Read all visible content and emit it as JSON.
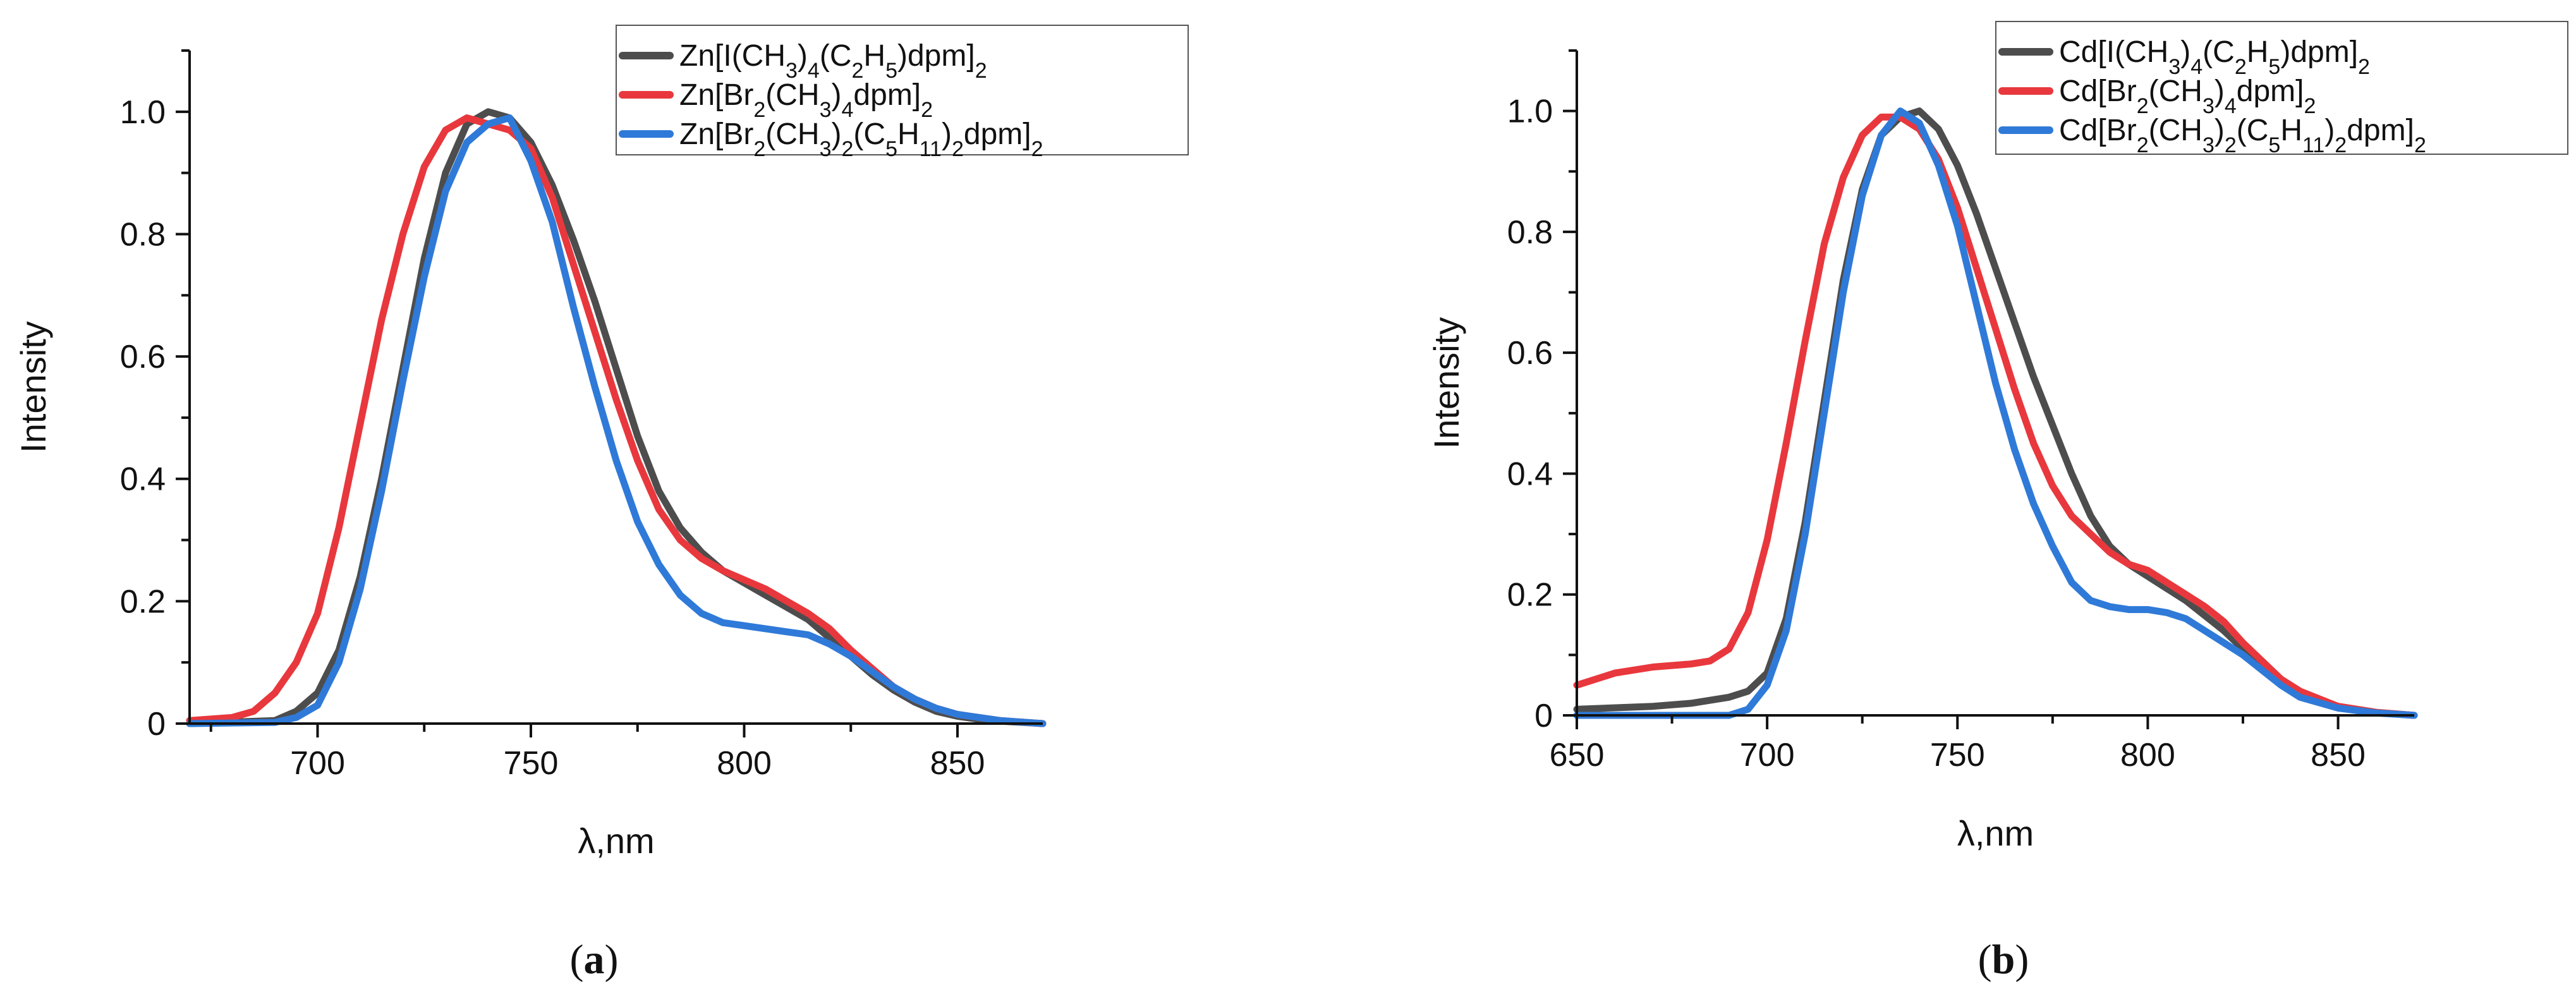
{
  "chart_data": [
    {
      "type": "line",
      "panel": "(a)",
      "panel_letter": "a",
      "xlabel": "λ,nm",
      "ylabel": "Intensity",
      "xlim": [
        670,
        870
      ],
      "ylim": [
        0,
        1.1
      ],
      "xticks": [
        700,
        750,
        800,
        850
      ],
      "yticks": [
        0,
        0.2,
        0.4,
        0.6,
        0.8,
        1.0
      ],
      "ytick_labels": [
        "0",
        "0.2",
        "0.4",
        "0.6",
        "0.8",
        "1.0"
      ],
      "legend_position": "top-right",
      "series": [
        {
          "name": "Zn[I(CH3)4(C2H5)dpm]2",
          "legend_label": "Zn[I(CH₃)₄(C₂H₅)dpm]₂",
          "color": "#4d4d4d",
          "x": [
            670,
            690,
            695,
            700,
            705,
            710,
            715,
            720,
            725,
            730,
            735,
            740,
            745,
            750,
            755,
            760,
            765,
            770,
            775,
            780,
            785,
            790,
            795,
            800,
            805,
            810,
            815,
            820,
            825,
            830,
            835,
            840,
            845,
            850,
            855,
            860,
            870
          ],
          "y": [
            0.0,
            0.005,
            0.02,
            0.05,
            0.12,
            0.24,
            0.4,
            0.58,
            0.76,
            0.9,
            0.98,
            1.0,
            0.99,
            0.95,
            0.88,
            0.79,
            0.69,
            0.58,
            0.47,
            0.38,
            0.32,
            0.28,
            0.25,
            0.23,
            0.21,
            0.19,
            0.17,
            0.14,
            0.11,
            0.08,
            0.055,
            0.035,
            0.02,
            0.012,
            0.007,
            0.004,
            0.0
          ]
        },
        {
          "name": "Zn[Br2(CH3)4dpm]2",
          "legend_label": "Zn[Br₂(CH₃)₄dpm]₂",
          "color": "#e8383d",
          "x": [
            670,
            680,
            685,
            690,
            695,
            700,
            705,
            710,
            715,
            720,
            725,
            730,
            735,
            740,
            745,
            750,
            755,
            760,
            765,
            770,
            775,
            780,
            785,
            790,
            795,
            800,
            805,
            810,
            815,
            820,
            825,
            830,
            835,
            840,
            845,
            850,
            860,
            870
          ],
          "y": [
            0.005,
            0.01,
            0.02,
            0.05,
            0.1,
            0.18,
            0.32,
            0.49,
            0.66,
            0.8,
            0.91,
            0.97,
            0.99,
            0.98,
            0.97,
            0.94,
            0.86,
            0.75,
            0.64,
            0.53,
            0.43,
            0.35,
            0.3,
            0.27,
            0.25,
            0.235,
            0.22,
            0.2,
            0.18,
            0.155,
            0.12,
            0.09,
            0.06,
            0.04,
            0.025,
            0.015,
            0.005,
            0.0
          ]
        },
        {
          "name": "Zn[Br2(CH3)2(C5H11)2dpm]2",
          "legend_label": "Zn[Br₂(CH₃)₂(C₅H₁₁)₂dpm]₂",
          "color": "#2f7ad8",
          "x": [
            670,
            690,
            695,
            700,
            705,
            710,
            715,
            720,
            725,
            730,
            735,
            740,
            745,
            750,
            755,
            760,
            765,
            770,
            775,
            780,
            785,
            790,
            795,
            800,
            805,
            810,
            815,
            820,
            825,
            830,
            835,
            840,
            845,
            850,
            860,
            870
          ],
          "y": [
            0.0,
            0.002,
            0.01,
            0.03,
            0.1,
            0.22,
            0.38,
            0.56,
            0.73,
            0.87,
            0.95,
            0.98,
            0.99,
            0.92,
            0.82,
            0.68,
            0.55,
            0.43,
            0.33,
            0.26,
            0.21,
            0.18,
            0.165,
            0.16,
            0.155,
            0.15,
            0.145,
            0.13,
            0.11,
            0.085,
            0.06,
            0.04,
            0.025,
            0.015,
            0.005,
            0.0
          ]
        }
      ]
    },
    {
      "type": "line",
      "panel": "(b)",
      "panel_letter": "b",
      "xlabel": "λ,nm",
      "ylabel": "Intensity",
      "xlim": [
        650,
        870
      ],
      "ylim": [
        0,
        1.1
      ],
      "xticks": [
        650,
        700,
        750,
        800,
        850
      ],
      "yticks": [
        0,
        0.2,
        0.4,
        0.6,
        0.8,
        1.0
      ],
      "ytick_labels": [
        "0",
        "0.2",
        "0.4",
        "0.6",
        "0.8",
        "1.0"
      ],
      "legend_position": "top-right",
      "series": [
        {
          "name": "Cd[I(CH3)4(C2H5)dpm]2",
          "legend_label": "Cd[I(CH₃)₄(C₂H₅)dpm]₂",
          "color": "#4d4d4d",
          "x": [
            650,
            670,
            680,
            690,
            695,
            700,
            705,
            710,
            715,
            720,
            725,
            730,
            735,
            740,
            745,
            750,
            755,
            760,
            765,
            770,
            775,
            780,
            785,
            790,
            795,
            800,
            805,
            810,
            815,
            820,
            825,
            830,
            835,
            840,
            850,
            860,
            870
          ],
          "y": [
            0.01,
            0.015,
            0.02,
            0.03,
            0.04,
            0.07,
            0.16,
            0.32,
            0.52,
            0.72,
            0.87,
            0.96,
            0.99,
            1.0,
            0.97,
            0.91,
            0.83,
            0.74,
            0.65,
            0.56,
            0.48,
            0.4,
            0.33,
            0.28,
            0.25,
            0.23,
            0.21,
            0.19,
            0.165,
            0.14,
            0.11,
            0.08,
            0.055,
            0.035,
            0.015,
            0.005,
            0.0
          ]
        },
        {
          "name": "Cd[Br2(CH3)4dpm]2",
          "legend_label": "Cd[Br₂(CH₃)₄dpm]₂",
          "color": "#e8383d",
          "x": [
            650,
            660,
            670,
            680,
            685,
            690,
            695,
            700,
            705,
            710,
            715,
            720,
            725,
            730,
            735,
            740,
            745,
            750,
            755,
            760,
            765,
            770,
            775,
            780,
            785,
            790,
            795,
            800,
            805,
            810,
            815,
            820,
            825,
            830,
            835,
            840,
            850,
            860,
            870
          ],
          "y": [
            0.05,
            0.07,
            0.08,
            0.085,
            0.09,
            0.11,
            0.17,
            0.29,
            0.45,
            0.62,
            0.78,
            0.89,
            0.96,
            0.99,
            0.99,
            0.97,
            0.92,
            0.84,
            0.74,
            0.64,
            0.54,
            0.45,
            0.38,
            0.33,
            0.3,
            0.27,
            0.25,
            0.24,
            0.22,
            0.2,
            0.18,
            0.155,
            0.12,
            0.09,
            0.06,
            0.04,
            0.015,
            0.005,
            0.0
          ]
        },
        {
          "name": "Cd[Br2(CH3)2(C5H11)2dpm]2",
          "legend_label": "Cd[Br₂(CH₃)₂(C₅H₁₁)₂dpm]₂",
          "color": "#2f7ad8",
          "x": [
            650,
            690,
            695,
            700,
            705,
            710,
            715,
            720,
            725,
            730,
            735,
            740,
            745,
            750,
            755,
            760,
            765,
            770,
            775,
            780,
            785,
            790,
            795,
            800,
            805,
            810,
            815,
            820,
            825,
            830,
            835,
            840,
            850,
            860,
            870
          ],
          "y": [
            0.0,
            0.0,
            0.01,
            0.05,
            0.14,
            0.3,
            0.5,
            0.7,
            0.86,
            0.96,
            1.0,
            0.98,
            0.91,
            0.81,
            0.68,
            0.55,
            0.44,
            0.35,
            0.28,
            0.22,
            0.19,
            0.18,
            0.175,
            0.175,
            0.17,
            0.16,
            0.14,
            0.12,
            0.1,
            0.075,
            0.05,
            0.03,
            0.012,
            0.004,
            0.0
          ]
        }
      ]
    }
  ]
}
